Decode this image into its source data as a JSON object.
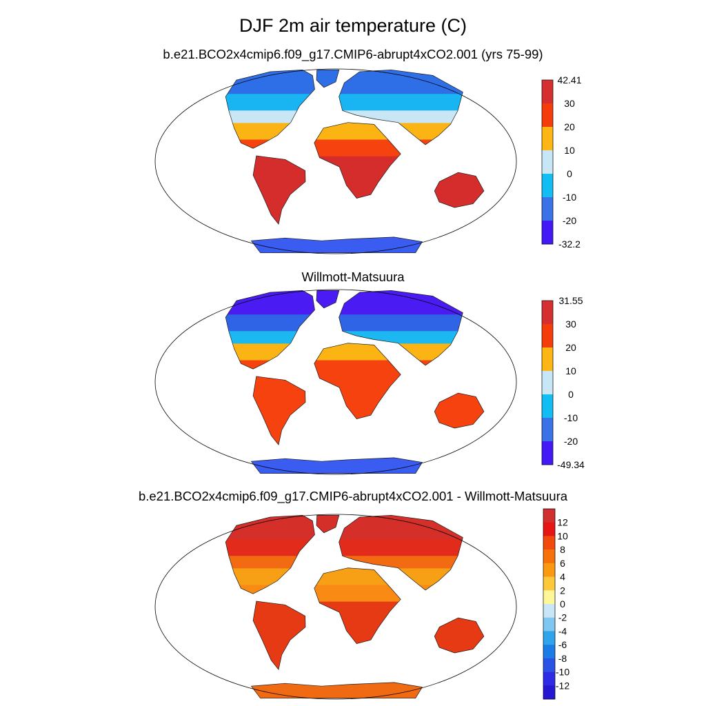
{
  "figure": {
    "title": "DJF 2m air temperature (C)"
  },
  "panels": [
    {
      "title": "b.e21.BCO2x4cmip6.f09_g17.CMIP6-abrupt4xCO2.001 (yrs 75-99)",
      "colorbar": {
        "labels": [
          "42.41",
          "30",
          "20",
          "10",
          "0",
          "-10",
          "-20",
          "-32.2"
        ],
        "colors": [
          "#d62f2f",
          "#f53d0b",
          "#fdb613",
          "#c7e7f6",
          "#12bdf3",
          "#3a72e8",
          "#4419f5"
        ]
      },
      "palette": {
        "polar": "#2e6ee6",
        "cold": "#19b4f2",
        "cool": "#c9e6f4",
        "mild": "#fbb414",
        "warm": "#f5420f",
        "hot": "#d42d2c",
        "ice": "#3a5cf0"
      }
    },
    {
      "title": "Willmott-Matsuura",
      "colorbar": {
        "labels": [
          "31.55",
          "30",
          "20",
          "10",
          "0",
          "-10",
          "-20",
          "-49.34"
        ],
        "colors": [
          "#d62f2f",
          "#f53d0b",
          "#fdb613",
          "#c7e7f6",
          "#12bdf3",
          "#3a72e8",
          "#4419f5"
        ]
      },
      "palette": {
        "polar": "#4a1cf3",
        "cold": "#2f64e6",
        "cool": "#1cb8f2",
        "mild": "#fbb414",
        "warm": "#f5420f",
        "hot": "#f5420f",
        "ice": "#3a5cf0"
      }
    },
    {
      "title": "b.e21.BCO2x4cmip6.f09_g17.CMIP6-abrupt4xCO2.001 - Willmott-Matsuura",
      "colorbar": {
        "labels": [
          "12",
          "10",
          "8",
          "6",
          "4",
          "2",
          "0",
          "-2",
          "-4",
          "-6",
          "-8",
          "-10",
          "-12"
        ],
        "colors": [
          "#d22f2f",
          "#e51613",
          "#f24a0c",
          "#f7710b",
          "#fb9a10",
          "#fdc93a",
          "#fef79a",
          "#c8e6f5",
          "#7fc7f1",
          "#2fa4ec",
          "#1b7ce6",
          "#2a52e5",
          "#2f2ae6",
          "#2617d2"
        ]
      },
      "palette": {
        "polar": "#d52f2a",
        "cold": "#e32b1c",
        "cool": "#f26a12",
        "mild": "#f8a015",
        "warm": "#f98a14",
        "hot": "#e63a14",
        "ice": "#f06a14"
      }
    }
  ]
}
